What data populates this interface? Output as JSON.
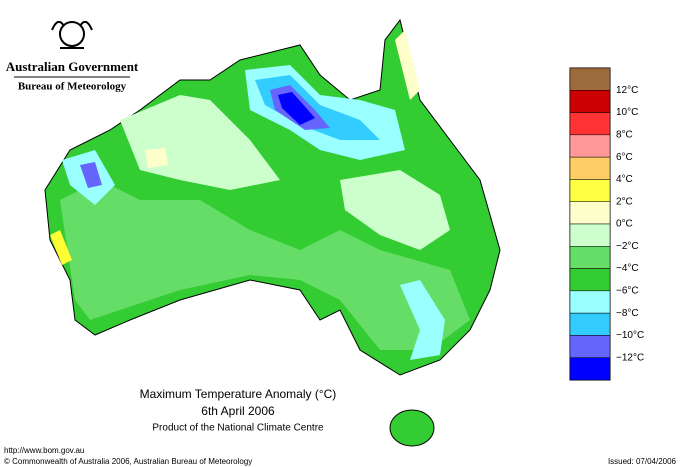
{
  "header": {
    "government": "Australian Government",
    "bureau": "Bureau of Meteorology"
  },
  "legend": {
    "labels": [
      "12°C",
      "10°C",
      "8°C",
      "6°C",
      "4°C",
      "2°C",
      "0°C",
      "−2°C",
      "−4°C",
      "−6°C",
      "−8°C",
      "−10°C",
      "−12°C"
    ]
  },
  "title": {
    "lines": [
      "Maximum Temperature Anomaly (°C)",
      "6th April 2006",
      "Product of the National Climate Centre"
    ]
  },
  "footer": {
    "url": "http://www.bom.gov.au",
    "copyright": "© Commonwealth of Australia 2006, Australian Bureau of Meteorology",
    "issued": "Issued: 07/04/2006"
  }
}
